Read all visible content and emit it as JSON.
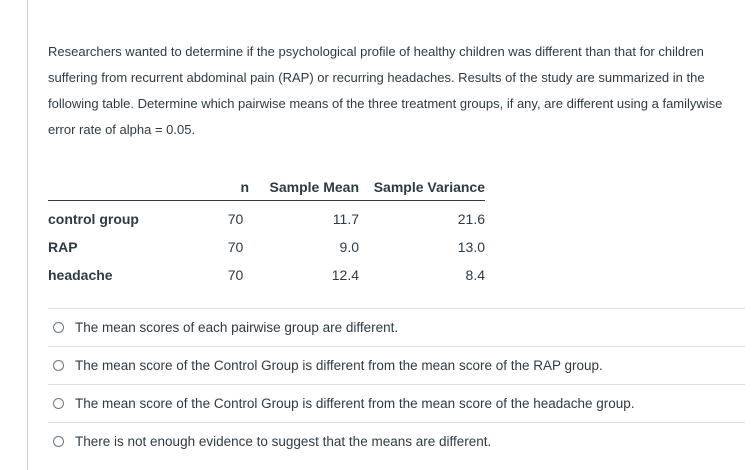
{
  "question": {
    "prompt_lines": [
      "Researchers wanted to determine if the psychological profile of healthy children was different than that for children",
      "suffering from recurrent abdominal pain (RAP) or recurring headaches.  Results of the study are summarized in the",
      "following table.  Determine which pairwise means of the three treatment groups, if any, are different using a familywise",
      "error rate of alpha = 0.05."
    ]
  },
  "table": {
    "headers": {
      "group": "",
      "n": "n",
      "mean": "Sample Mean",
      "variance": "Sample Variance"
    },
    "rows": [
      {
        "group": "control group",
        "n": "70",
        "mean": "11.7",
        "variance": "21.6"
      },
      {
        "group": "RAP",
        "n": "70",
        "mean": "9.0",
        "variance": "13.0"
      },
      {
        "group": "headache",
        "n": "70",
        "mean": "12.4",
        "variance": "8.4"
      }
    ]
  },
  "answers": [
    {
      "label": "The mean scores of each pairwise group are different."
    },
    {
      "label": "The mean score of the Control Group is different from the mean score of the RAP group."
    },
    {
      "label": "The mean score of the Control Group is different from the mean score of the headache group."
    },
    {
      "label": "There is not enough evidence to suggest that the means are different."
    }
  ]
}
